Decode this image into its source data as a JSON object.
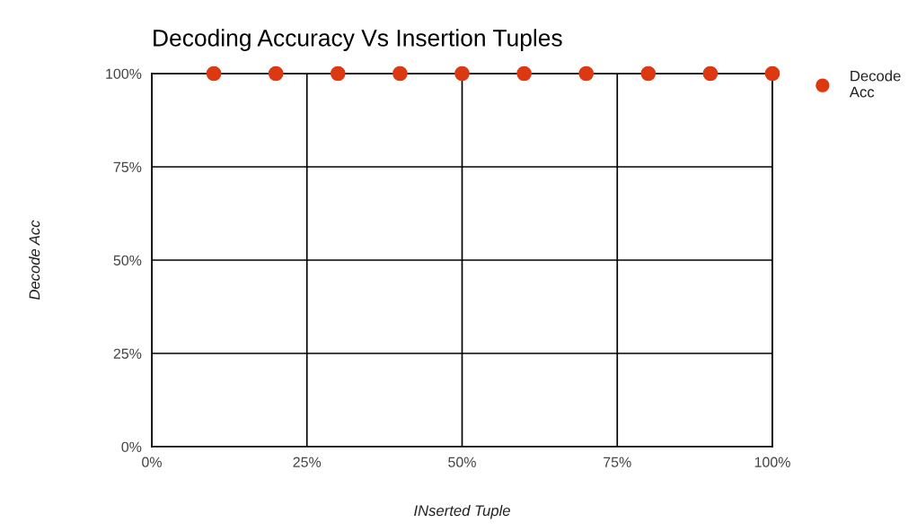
{
  "chart_data": {
    "type": "scatter",
    "title": "Decoding Accuracy Vs Insertion Tuples",
    "xlabel": "INserted Tuple",
    "ylabel": "Decode Acc",
    "x": [
      10,
      20,
      30,
      40,
      50,
      60,
      70,
      80,
      90,
      100
    ],
    "series": [
      {
        "name": "Decode Acc",
        "color": "#dc3912",
        "values": [
          100,
          100,
          100,
          100,
          100,
          100,
          100,
          100,
          100,
          100
        ]
      }
    ],
    "xlim": [
      0,
      100
    ],
    "ylim": [
      0,
      100
    ],
    "xticks": [
      {
        "value": 0,
        "label": "0%"
      },
      {
        "value": 25,
        "label": "25%"
      },
      {
        "value": 50,
        "label": "50%"
      },
      {
        "value": 75,
        "label": "75%"
      },
      {
        "value": 100,
        "label": "100%"
      }
    ],
    "yticks": [
      {
        "value": 0,
        "label": "0%"
      },
      {
        "value": 25,
        "label": "25%"
      },
      {
        "value": 50,
        "label": "50%"
      },
      {
        "value": 75,
        "label": "75%"
      },
      {
        "value": 100,
        "label": "100%"
      }
    ],
    "grid": true,
    "legend": "top right",
    "marker": "circle"
  }
}
